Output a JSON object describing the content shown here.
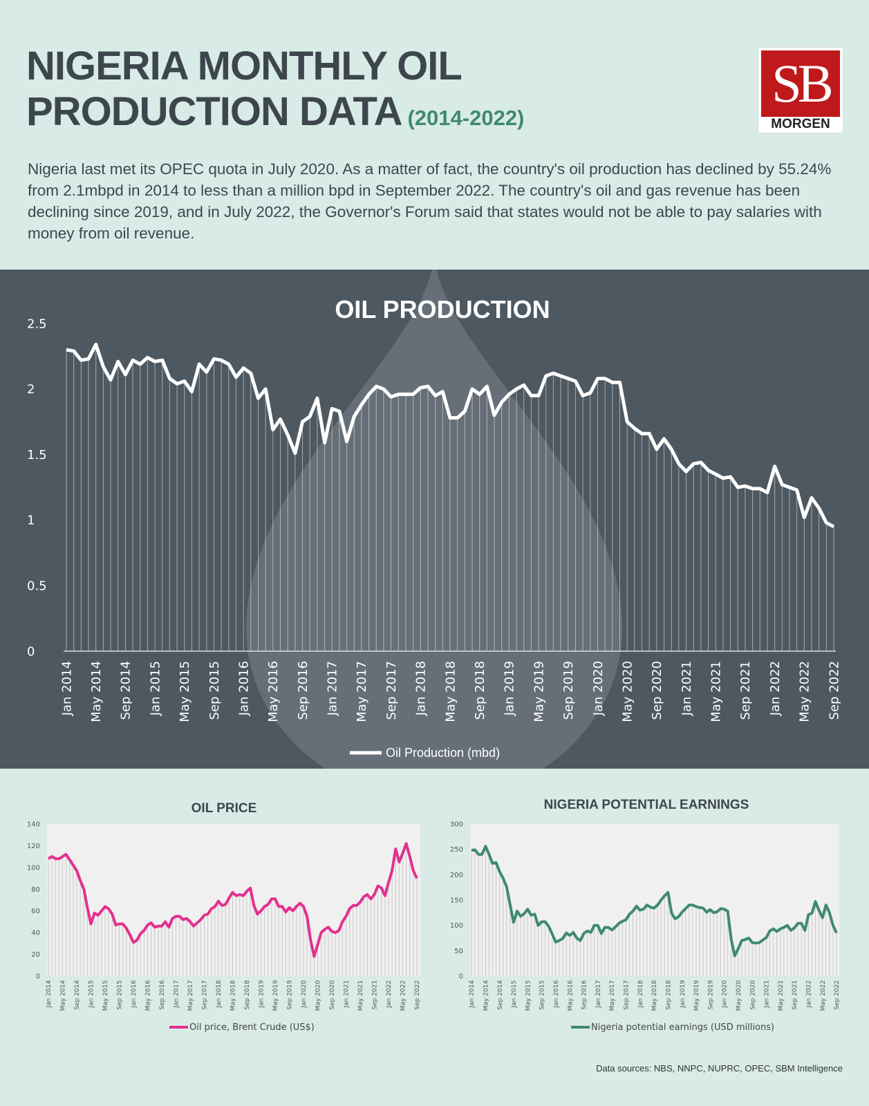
{
  "title": {
    "line1": "NIGERIA MONTHLY OIL",
    "line2": "PRODUCTION DATA",
    "years": "(2014-2022)"
  },
  "logo": {
    "mark": "SB",
    "text": "MORGEN"
  },
  "intro": "Nigeria last met its OPEC quota in July 2020. As a matter of fact, the country's oil production has declined by 55.24% from 2.1mbpd in 2014 to less than a million bpd in September 2022. The country's oil and gas revenue has been declining since 2019, and in July 2022, the Governor's Forum said that states would not be able to pay salaries with money from oil revenue.",
  "sources": "Data sources: NBS, NNPC, NUPRC, OPEC, SBM Intelligence",
  "colors": {
    "main_bg": "#4d5861",
    "page_bg": "#d9ebe6",
    "production_line": "#ffffff",
    "price_line": "#e3308f",
    "earnings_line": "#3f8a6f"
  },
  "chart_data": [
    {
      "type": "line",
      "title": "OIL PRODUCTION",
      "ylim": [
        0,
        2.5
      ],
      "yticks": [
        "0",
        "0.5",
        "1",
        "1.5",
        "2",
        "2.5"
      ],
      "xtick_labels": [
        "Jan 2014",
        "May 2014",
        "Sep 2014",
        "Jan 2015",
        "May 2015",
        "Sep 2015",
        "Jan 2016",
        "May 2016",
        "Sep 2016",
        "Jan 2017",
        "May 2017",
        "Sep 2017",
        "Jan 2018",
        "May 2018",
        "Sep 2018",
        "Jan 2019",
        "May 2019",
        "Sep 2019",
        "Jan 2020",
        "May 2020",
        "Sep 2020",
        "Jan 2021",
        "May 2021",
        "Sep 2021",
        "Jan 2022",
        "May 2022",
        "Sep 2022"
      ],
      "grid": false,
      "legend": "bottom",
      "series": [
        {
          "name": "Oil Production (mbd)",
          "values": [
            2.3,
            2.29,
            2.22,
            2.23,
            2.34,
            2.17,
            2.07,
            2.21,
            2.11,
            2.22,
            2.19,
            2.24,
            2.21,
            2.22,
            2.08,
            2.04,
            2.06,
            1.98,
            2.19,
            2.13,
            2.23,
            2.22,
            2.19,
            2.09,
            2.16,
            2.12,
            1.93,
            2.0,
            1.69,
            1.77,
            1.65,
            1.51,
            1.75,
            1.79,
            1.93,
            1.59,
            1.85,
            1.83,
            1.6,
            1.79,
            1.88,
            1.96,
            2.02,
            2.0,
            1.94,
            1.96,
            1.96,
            1.96,
            2.01,
            2.02,
            1.95,
            1.98,
            1.78,
            1.78,
            1.83,
            2.0,
            1.96,
            2.02,
            1.8,
            1.9,
            1.96,
            2.0,
            2.03,
            1.95,
            1.95,
            2.1,
            2.12,
            2.1,
            2.08,
            2.06,
            1.95,
            1.97,
            2.08,
            2.08,
            2.05,
            2.05,
            1.75,
            1.7,
            1.66,
            1.66,
            1.54,
            1.62,
            1.54,
            1.43,
            1.37,
            1.43,
            1.44,
            1.38,
            1.35,
            1.32,
            1.33,
            1.25,
            1.26,
            1.24,
            1.24,
            1.21,
            1.41,
            1.27,
            1.25,
            1.23,
            1.02,
            1.17,
            1.09,
            0.98,
            0.95
          ]
        }
      ]
    },
    {
      "type": "line",
      "title": "OIL PRICE",
      "ylim": [
        0,
        140
      ],
      "yticks": [
        "0",
        "20",
        "40",
        "60",
        "80",
        "100",
        "120",
        "140"
      ],
      "xtick_labels": [
        "Jan 2014",
        "May 2014",
        "Sep 2014",
        "Jan 2015",
        "May 2015",
        "Sep 2015",
        "Jan 2016",
        "May 2016",
        "Sep 2016",
        "Jan 2017",
        "May 2017",
        "Sep 2017",
        "Jan 2018",
        "May 2018",
        "Sep 2018",
        "Jan 2019",
        "May 2019",
        "Sep 2019",
        "Jan 2020",
        "May 2020",
        "Sep 2020",
        "Jan 2021",
        "May 2021",
        "Sep 2021",
        "Jan 2022",
        "May 2022",
        "Sep 2022"
      ],
      "legend": "bottom",
      "series": [
        {
          "name": "Oil price, Brent Crude (US$)",
          "values": [
            108,
            110,
            108,
            108,
            110,
            112,
            107,
            102,
            97,
            88,
            80,
            63,
            48,
            58,
            56,
            60,
            64,
            62,
            57,
            47,
            48,
            48,
            44,
            38,
            31,
            33,
            39,
            42,
            47,
            49,
            45,
            46,
            46,
            50,
            45,
            53,
            55,
            55,
            52,
            53,
            50,
            46,
            49,
            52,
            56,
            57,
            62,
            64,
            69,
            65,
            66,
            72,
            77,
            74,
            75,
            74,
            78,
            81,
            65,
            57,
            60,
            64,
            66,
            71,
            71,
            64,
            64,
            59,
            63,
            60,
            64,
            67,
            64,
            55,
            33,
            18,
            29,
            40,
            43,
            45,
            41,
            40,
            42,
            50,
            55,
            62,
            65,
            65,
            68,
            73,
            75,
            71,
            75,
            83,
            81,
            74,
            86,
            97,
            117,
            105,
            113,
            122,
            110,
            97,
            90
          ]
        }
      ]
    },
    {
      "type": "line",
      "title": "NIGERIA POTENTIAL EARNINGS",
      "ylim": [
        0,
        300
      ],
      "yticks": [
        "0",
        "50",
        "100",
        "150",
        "200",
        "250",
        "300"
      ],
      "xtick_labels": [
        "Jan 2014",
        "May 2014",
        "Sep 2014",
        "Jan 2015",
        "May 2015",
        "Sep 2015",
        "Jan 2016",
        "May 2016",
        "Sep 2016",
        "Jan 2017",
        "May 2017",
        "Sep 2017",
        "Jan 2018",
        "May 2018",
        "Sep 2018",
        "Jan 2019",
        "May 2019",
        "Sep 2019",
        "Jan 2020",
        "May 2020",
        "Sep 2020",
        "Jan 2021",
        "May 2021",
        "Sep 2021",
        "Jan 2022",
        "May 2022",
        "Sep 2022"
      ],
      "legend": "bottom",
      "series": [
        {
          "name": "Nigeria potential earnings (USD millions)",
          "values": [
            248,
            249,
            240,
            240,
            256,
            240,
            222,
            224,
            206,
            193,
            176,
            141,
            106,
            128,
            118,
            123,
            132,
            120,
            122,
            100,
            107,
            107,
            98,
            83,
            67,
            70,
            74,
            85,
            80,
            86,
            75,
            70,
            84,
            89,
            86,
            100,
            100,
            84,
            96,
            96,
            91,
            97,
            104,
            108,
            111,
            122,
            128,
            138,
            130,
            132,
            140,
            136,
            134,
            140,
            150,
            158,
            165,
            124,
            113,
            117,
            126,
            133,
            140,
            140,
            137,
            135,
            134,
            126,
            131,
            125,
            127,
            133,
            132,
            128,
            72,
            40,
            54,
            70,
            72,
            75,
            66,
            65,
            66,
            71,
            76,
            89,
            93,
            88,
            93,
            96,
            100,
            90,
            95,
            104,
            104,
            90,
            121,
            124,
            147,
            130,
            115,
            140,
            125,
            100,
            85
          ]
        }
      ]
    }
  ]
}
